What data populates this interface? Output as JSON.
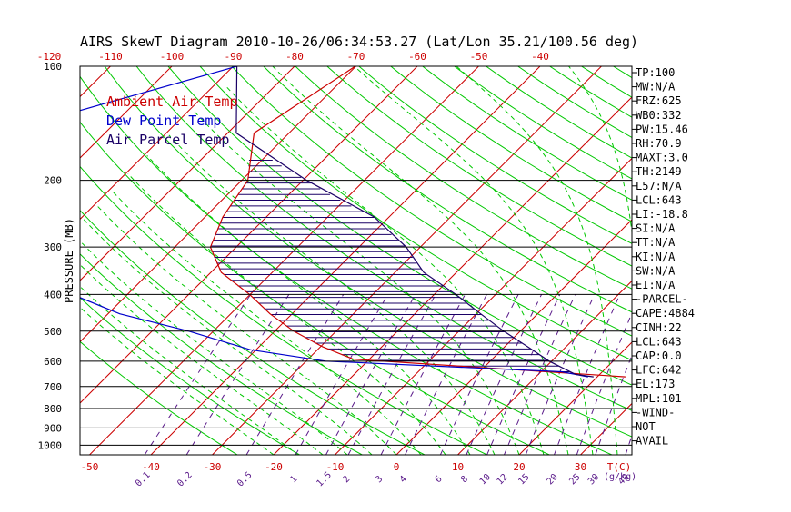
{
  "chart_data": {
    "type": "line",
    "chart_kind": "skew-t log-p diagram",
    "title": "AIRS SkewT Diagram 2010-10-26/06:34:53.27 (Lat/Lon 35.21/100.56 deg)",
    "ylabel": "PRESSURE (MB)",
    "xlabel": "T(C)",
    "mixing_ratio_label": "(g/kg)",
    "y_scale": "log",
    "ylim": [
      1060,
      100
    ],
    "pressure_ticks": [
      100,
      200,
      300,
      400,
      500,
      600,
      700,
      800,
      900,
      1000
    ],
    "bottom_temp_ticks": [
      -50,
      -40,
      -30,
      -20,
      -10,
      0,
      10,
      20,
      30
    ],
    "top_temp_ticks": [
      -120,
      -110,
      -100,
      -90,
      -80,
      -70,
      -60,
      -50,
      -40
    ],
    "mixing_ratio_ticks": [
      "0.1",
      "0.2",
      "0.5",
      "1",
      "1.5",
      "2",
      "3",
      "4",
      "6",
      "8",
      "10",
      "12",
      "15",
      "20",
      "25",
      "30",
      "40"
    ],
    "legend": [
      "Ambient Air Temp",
      "Dew Point Temp",
      "Air Parcel Temp"
    ],
    "colors": {
      "ambient": "#cc0000",
      "dewpoint": "#0000cc",
      "parcel": "#1a0066",
      "isotherm": "#cc0000",
      "dry_adiabat": "#00c800",
      "moist_adiabat": "#00c800",
      "mixing_ratio": "#5a1a8a",
      "hatch": "#1a0066"
    },
    "series": [
      {
        "name": "Ambient Air Temp",
        "points": [
          {
            "p": 100,
            "t": -70.1
          },
          {
            "p": 150,
            "t": -75.7
          },
          {
            "p": 200,
            "t": -69.0
          },
          {
            "p": 250,
            "t": -67.1
          },
          {
            "p": 300,
            "t": -64.2
          },
          {
            "p": 350,
            "t": -58.3
          },
          {
            "p": 400,
            "t": -50.1
          },
          {
            "p": 450,
            "t": -43.6
          },
          {
            "p": 500,
            "t": -36.9
          },
          {
            "p": 550,
            "t": -29.6
          },
          {
            "p": 593,
            "t": -22.6
          },
          {
            "p": 655,
            "t": 21.2
          },
          {
            "p": 660,
            "t": 24.6
          }
        ]
      },
      {
        "name": "Dew Point Temp",
        "points": [
          {
            "p": 100,
            "t": -89.4
          },
          {
            "p": 150,
            "t": -117.1
          },
          {
            "p": 200,
            "t": -126.4
          },
          {
            "p": 250,
            "t": -112.4
          },
          {
            "p": 300,
            "t": -97.4
          },
          {
            "p": 350,
            "t": -86.6
          },
          {
            "p": 400,
            "t": -79.0
          },
          {
            "p": 450,
            "t": -68.1
          },
          {
            "p": 500,
            "t": -54.0
          },
          {
            "p": 560,
            "t": -40.9
          },
          {
            "p": 600,
            "t": -26.8
          },
          {
            "p": 640,
            "t": 13.4
          },
          {
            "p": 660,
            "t": 18.5
          }
        ]
      },
      {
        "name": "Air Parcel Temp",
        "points": [
          {
            "p": 100,
            "t": -89.4
          },
          {
            "p": 150,
            "t": -78.6
          },
          {
            "p": 200,
            "t": -59.4
          },
          {
            "p": 250,
            "t": -42.4
          },
          {
            "p": 300,
            "t": -32.3
          },
          {
            "p": 350,
            "t": -25.3
          },
          {
            "p": 400,
            "t": -16.5
          },
          {
            "p": 450,
            "t": -9.3
          },
          {
            "p": 500,
            "t": -2.7
          },
          {
            "p": 550,
            "t": 3.8
          },
          {
            "p": 600,
            "t": 9.6
          },
          {
            "p": 650,
            "t": 16.0
          },
          {
            "p": 660,
            "t": 19.4
          }
        ]
      }
    ],
    "indices": [
      "TP:100",
      "MW:N/A",
      "FRZ:625",
      "WB0:332",
      "PW:15.46",
      "RH:70.9",
      "MAXT:3.0",
      "TH:2149",
      "L57:N/A",
      "LCL:643",
      "LI:-18.8",
      "SI:N/A",
      "TT:N/A",
      "KI:N/A",
      "SW:N/A",
      "EI:N/A",
      "-PARCEL-",
      "CAPE:4884",
      "CINH:22",
      "LCL:643",
      "CAP:0.0",
      "LFC:642",
      "EL:173",
      "MPL:101",
      "-WIND-",
      "NOT",
      "AVAIL"
    ]
  }
}
